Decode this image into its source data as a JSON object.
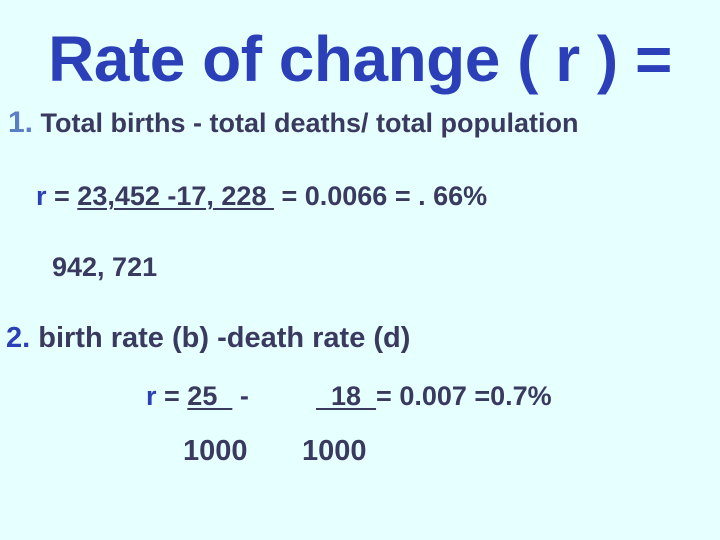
{
  "title": "Rate of change ( r ) =",
  "section1": {
    "number": "1.",
    "text": " Total births - total deaths/ total population",
    "equation": {
      "var": "r",
      "eq": " = ",
      "numerator": "23,452 -17, 228 ",
      "result": " = 0.0066 = . 66%"
    },
    "denominator": "942, 721"
  },
  "section2": {
    "number": "2.",
    "text": " birth rate (b) -death rate (d)",
    "equation": {
      "var": "r",
      "eq": " = ",
      "numerator_b": "25  ",
      "minus": " -",
      "numerator_d": "  18  ",
      "result": "= 0.007 =0.7%"
    },
    "denominator_b": "1000",
    "denominator_d": "1000"
  },
  "colors": {
    "background": "#e6ffff",
    "title": "#2a3fb8",
    "text": "#3a3a60"
  }
}
